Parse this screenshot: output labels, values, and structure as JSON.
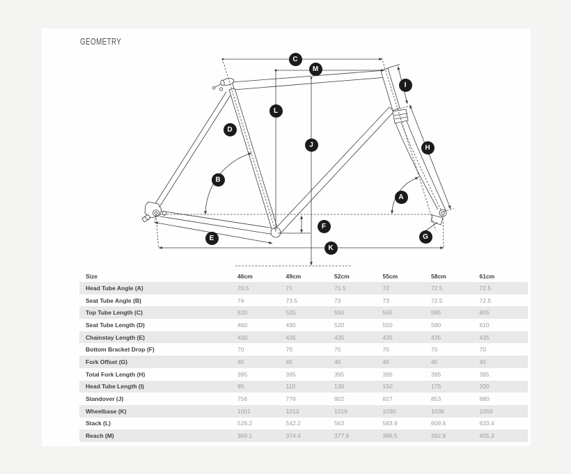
{
  "page": {
    "title": "GEOMETRY"
  },
  "diagram": {
    "markers": {
      "a": "A",
      "b": "B",
      "c": "C",
      "d": "D",
      "e": "E",
      "f": "F",
      "g": "G",
      "h": "H",
      "i": "I",
      "j": "J",
      "k": "K",
      "l": "L",
      "m": "M"
    }
  },
  "table": {
    "columns": [
      "Size",
      "46cm",
      "49cm",
      "52cm",
      "55cm",
      "58cm",
      "61cm"
    ],
    "rows": [
      {
        "label": "Head Tube Angle (A)",
        "values": [
          "70.5",
          "71",
          "71.5",
          "72",
          "72.5",
          "72.5"
        ]
      },
      {
        "label": "Seat Tube Angle (B)",
        "values": [
          "74",
          "73.5",
          "73",
          "73",
          "72.5",
          "72.5"
        ]
      },
      {
        "label": "Top Tube Length (C)",
        "values": [
          "520",
          "535",
          "550",
          "565",
          "585",
          "605"
        ]
      },
      {
        "label": "Seat Tube Length (D)",
        "values": [
          "460",
          "490",
          "520",
          "550",
          "580",
          "610"
        ]
      },
      {
        "label": "Chainstay Length (E)",
        "values": [
          "430",
          "435",
          "435",
          "435",
          "435",
          "435"
        ]
      },
      {
        "label": "Bottom Bracket Drop (F)",
        "values": [
          "70",
          "70",
          "70",
          "70",
          "70",
          "70"
        ]
      },
      {
        "label": "Fork Offset (G)",
        "values": [
          "45",
          "45",
          "45",
          "45",
          "45",
          "45"
        ]
      },
      {
        "label": "Total Fork Length (H)",
        "values": [
          "395",
          "395",
          "395",
          "395",
          "395",
          "395"
        ]
      },
      {
        "label": "Head Tube Length (I)",
        "values": [
          "95",
          "110",
          "130",
          "150",
          "175",
          "200"
        ]
      },
      {
        "label": "Standover (J)",
        "values": [
          "756",
          "778",
          "802",
          "827",
          "853",
          "880"
        ]
      },
      {
        "label": "Wheelbase (K)",
        "values": [
          "1001",
          "1013",
          "1019",
          "1030",
          "1039",
          "1059"
        ]
      },
      {
        "label": "Stack (L)",
        "values": [
          "526.2",
          "542.2",
          "563",
          "583.9",
          "609.6",
          "633.4"
        ]
      },
      {
        "label": "Reach (M)",
        "values": [
          "369.1",
          "374.4",
          "377.9",
          "386.5",
          "392.8",
          "405.3"
        ]
      }
    ]
  },
  "colors": {
    "page_bg": "#f4f4f2",
    "panel_bg": "#fefefe",
    "row_shade": "#e9e9e9",
    "line": "#3a3a3a",
    "marker_bg": "#1b1b1b",
    "label_text": "#3f3f3f",
    "value_text": "#9c9c9c"
  }
}
